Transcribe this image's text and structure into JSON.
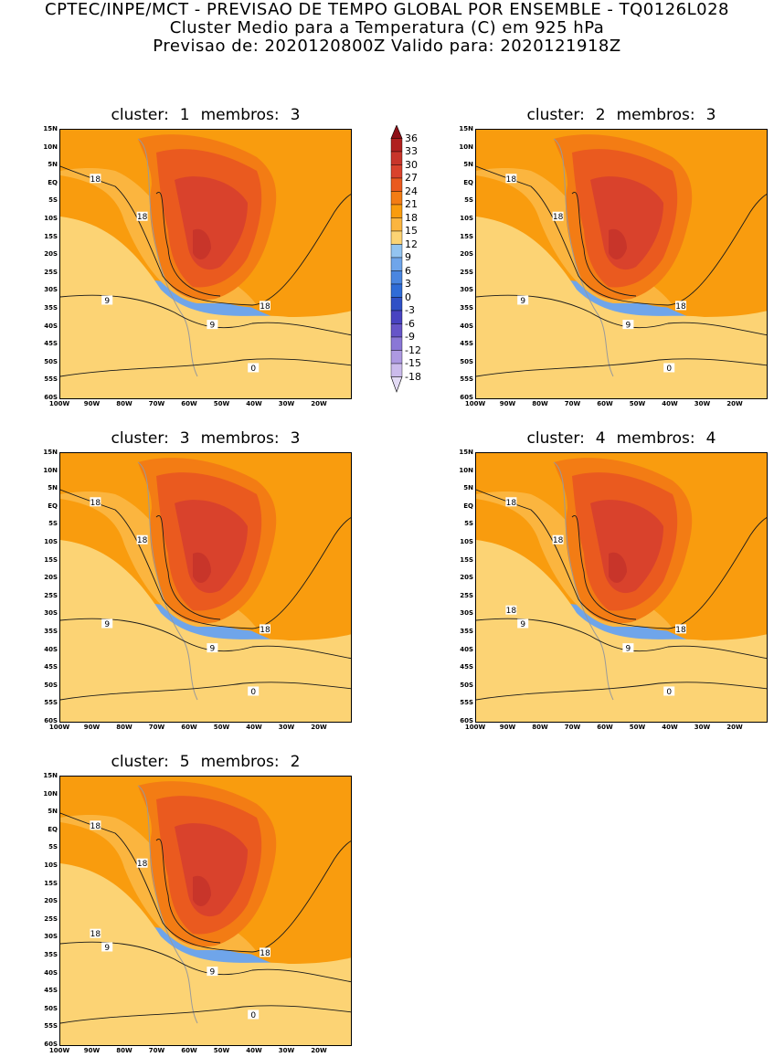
{
  "header": {
    "line1": "CPTEC/INPE/MCT - PREVISAO DE TEMPO GLOBAL POR ENSEMBLE - TQ0126L028",
    "line2": "Cluster Medio para a Temperatura (C) em 925 hPa",
    "line3": "Previsao de: 2020120800Z     Valido para: 2020121918Z"
  },
  "lat_labels": [
    "15N",
    "10N",
    "5N",
    "EQ",
    "5S",
    "10S",
    "15S",
    "20S",
    "25S",
    "30S",
    "35S",
    "40S",
    "45S",
    "50S",
    "55S",
    "60S"
  ],
  "lon_labels": [
    "100W",
    "90W",
    "80W",
    "70W",
    "60W",
    "50W",
    "40W",
    "30W",
    "20W"
  ],
  "colorbar": {
    "labels": [
      "36",
      "33",
      "30",
      "27",
      "24",
      "21",
      "18",
      "15",
      "12",
      "9",
      "6",
      "3",
      "0",
      "-3",
      "-6",
      "-9",
      "-12",
      "-15",
      "-18"
    ],
    "colors": [
      "#b0201f",
      "#c8352a",
      "#d9422c",
      "#ea5a1f",
      "#f37c14",
      "#f99c0e",
      "#fbb53f",
      "#fcd374",
      "#93c4f1",
      "#6fa5ea",
      "#4a86e0",
      "#2f6cd7",
      "#2f50c6",
      "#4843c1",
      "#6655c8",
      "#8a77d6",
      "#ad99e1",
      "#cbbbec"
    ],
    "top_color": "#8e0f17",
    "bottom_color": "#e3dbf5"
  },
  "panels": [
    {
      "cluster_label": "cluster:",
      "cluster_num": "1",
      "members_label": "membros:",
      "members_num": "3",
      "contours": [
        "18",
        "18",
        "9",
        "9",
        "0",
        "18"
      ]
    },
    {
      "cluster_label": "cluster:",
      "cluster_num": "2",
      "members_label": "membros:",
      "members_num": "3",
      "contours": [
        "18",
        "18",
        "9",
        "9",
        "0",
        "18"
      ]
    },
    {
      "cluster_label": "cluster:",
      "cluster_num": "3",
      "members_label": "membros:",
      "members_num": "3",
      "contours": [
        "18",
        "18",
        "9",
        "9",
        "0",
        "18"
      ]
    },
    {
      "cluster_label": "cluster:",
      "cluster_num": "4",
      "members_label": "membros:",
      "members_num": "4",
      "contours": [
        "18",
        "18",
        "9",
        "9",
        "0",
        "18",
        "18"
      ]
    },
    {
      "cluster_label": "cluster:",
      "cluster_num": "5",
      "members_label": "membros:",
      "members_num": "2",
      "contours": [
        "18",
        "18",
        "9",
        "9",
        "0",
        "18",
        "18"
      ]
    }
  ]
}
